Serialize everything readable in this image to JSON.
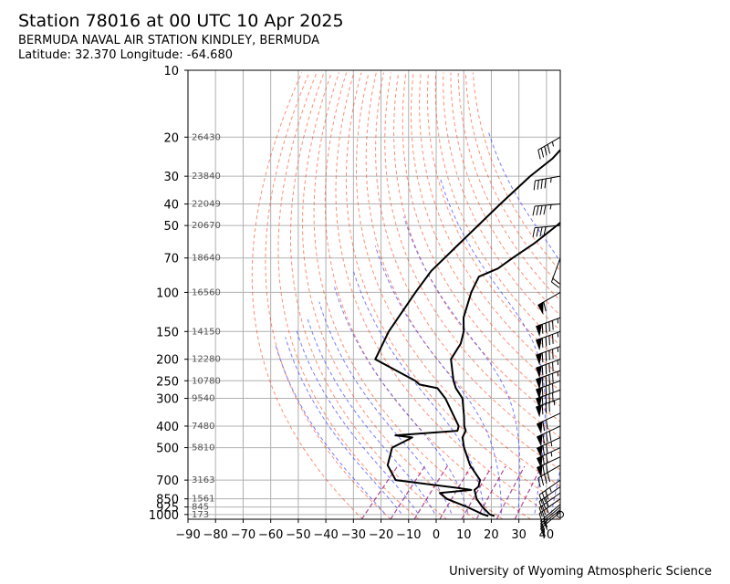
{
  "header": {
    "title": "Station 78016 at 00 UTC 10 Apr 2025",
    "station_name": "BERMUDA NAVAL AIR STATION KINDLEY, BERMUDA",
    "location": "Latitude: 32.370 Longitude: -64.680"
  },
  "footer": {
    "credit": "University of Wyoming Atmospheric Science"
  },
  "chart_data": {
    "type": "skew-t",
    "title": "Station 78016 at 00 UTC 10 Apr 2025",
    "xlabel": "",
    "ylabel": "",
    "x_axis": {
      "ticks": [
        -90,
        -80,
        -70,
        -60,
        -50,
        -40,
        -30,
        -20,
        -10,
        0,
        10,
        20,
        30,
        40
      ],
      "range": [
        -90,
        45
      ]
    },
    "y_axis": {
      "scale": "log",
      "ticks": [
        10,
        20,
        30,
        40,
        50,
        70,
        100,
        150,
        200,
        250,
        300,
        400,
        500,
        700,
        850,
        925,
        1000
      ],
      "range": [
        1050,
        10
      ]
    },
    "grid": true,
    "height_labels": [
      {
        "p": 20,
        "z": "26430"
      },
      {
        "p": 30,
        "z": "23840"
      },
      {
        "p": 40,
        "z": "22049"
      },
      {
        "p": 50,
        "z": "20670"
      },
      {
        "p": 70,
        "z": "18640"
      },
      {
        "p": 100,
        "z": "16560"
      },
      {
        "p": 150,
        "z": "14150"
      },
      {
        "p": 200,
        "z": "12280"
      },
      {
        "p": 250,
        "z": "10780"
      },
      {
        "p": 300,
        "z": "9540"
      },
      {
        "p": 400,
        "z": "7480"
      },
      {
        "p": 500,
        "z": "5810"
      },
      {
        "p": 700,
        "z": "3163"
      },
      {
        "p": 850,
        "z": "1561"
      },
      {
        "p": 925,
        "z": "845"
      },
      {
        "p": 1000,
        "z": "173"
      }
    ],
    "series": [
      {
        "role": "temperature",
        "points": [
          {
            "p": 1016,
            "t": 20.0
          },
          {
            "p": 1000,
            "t": 17.8
          },
          {
            "p": 925,
            "t": 12.4
          },
          {
            "p": 850,
            "t": 7.4
          },
          {
            "p": 775,
            "t": 3.5
          },
          {
            "p": 750,
            "t": 3.8
          },
          {
            "p": 700,
            "t": 2.0
          },
          {
            "p": 600,
            "t": -6.9
          },
          {
            "p": 500,
            "t": -15.3
          },
          {
            "p": 450,
            "t": -19.5
          },
          {
            "p": 420,
            "t": -20.7
          },
          {
            "p": 400,
            "t": -22.9
          },
          {
            "p": 360,
            "t": -26.6
          },
          {
            "p": 300,
            "t": -33.4
          },
          {
            "p": 270,
            "t": -39.4
          },
          {
            "p": 250,
            "t": -42.9
          },
          {
            "p": 200,
            "t": -51.5
          },
          {
            "p": 170,
            "t": -53.5
          },
          {
            "p": 150,
            "t": -56.7
          },
          {
            "p": 130,
            "t": -61.7
          },
          {
            "p": 100,
            "t": -67.9
          },
          {
            "p": 85,
            "t": -70.7
          },
          {
            "p": 78,
            "t": -66.7
          },
          {
            "p": 70,
            "t": -65.1
          },
          {
            "p": 60,
            "t": -62.4
          },
          {
            "p": 50,
            "t": -60.6
          },
          {
            "p": 40,
            "t": -58.8
          },
          {
            "p": 37,
            "t": -60.3
          },
          {
            "p": 30,
            "t": -57.5
          },
          {
            "p": 25,
            "t": -54.7
          },
          {
            "p": 20,
            "t": -54.7
          }
        ]
      },
      {
        "role": "dewpoint",
        "points": [
          {
            "p": 1016,
            "t": 17.8
          },
          {
            "p": 1000,
            "t": 15.4
          },
          {
            "p": 925,
            "t": 6.9
          },
          {
            "p": 850,
            "t": -3.4
          },
          {
            "p": 800,
            "t": -8.0
          },
          {
            "p": 775,
            "t": 2.3
          },
          {
            "p": 760,
            "t": -3.2
          },
          {
            "p": 700,
            "t": -28.6
          },
          {
            "p": 600,
            "t": -36.8
          },
          {
            "p": 500,
            "t": -41.4
          },
          {
            "p": 450,
            "t": -37.7
          },
          {
            "p": 440,
            "t": -44.6
          },
          {
            "p": 420,
            "t": -23.7
          },
          {
            "p": 400,
            "t": -24.9
          },
          {
            "p": 360,
            "t": -30.3
          },
          {
            "p": 300,
            "t": -39.6
          },
          {
            "p": 270,
            "t": -46.1
          },
          {
            "p": 260,
            "t": -53.9
          },
          {
            "p": 250,
            "t": -56.8
          },
          {
            "p": 200,
            "t": -78.9
          },
          {
            "p": 150,
            "t": -83.9
          },
          {
            "p": 100,
            "t": -88.1
          },
          {
            "p": 80,
            "t": -90.0
          },
          {
            "p": 60,
            "t": -89.5
          },
          {
            "p": 40,
            "t": -88.8
          },
          {
            "p": 30,
            "t": -87.8
          },
          {
            "p": 25,
            "t": -86.0
          },
          {
            "p": 20,
            "t": -86.5
          }
        ]
      }
    ],
    "winds": [
      {
        "p": 20,
        "dir": 240,
        "kt": 45
      },
      {
        "p": 30,
        "dir": 260,
        "kt": 45
      },
      {
        "p": 40,
        "dir": 265,
        "kt": 45
      },
      {
        "p": 50,
        "dir": 265,
        "kt": 40
      },
      {
        "p": 70,
        "dir": 200,
        "kt": 20
      },
      {
        "p": 100,
        "dir": 240,
        "kt": 60
      },
      {
        "p": 130,
        "dir": 250,
        "kt": 95
      },
      {
        "p": 150,
        "dir": 250,
        "kt": 95
      },
      {
        "p": 175,
        "dir": 250,
        "kt": 95
      },
      {
        "p": 200,
        "dir": 250,
        "kt": 95
      },
      {
        "p": 225,
        "dir": 250,
        "kt": 95
      },
      {
        "p": 250,
        "dir": 250,
        "kt": 90
      },
      {
        "p": 275,
        "dir": 250,
        "kt": 90
      },
      {
        "p": 300,
        "dir": 250,
        "kt": 85
      },
      {
        "p": 350,
        "dir": 245,
        "kt": 70
      },
      {
        "p": 400,
        "dir": 245,
        "kt": 80
      },
      {
        "p": 450,
        "dir": 245,
        "kt": 75
      },
      {
        "p": 500,
        "dir": 245,
        "kt": 75
      },
      {
        "p": 550,
        "dir": 245,
        "kt": 70
      },
      {
        "p": 600,
        "dir": 240,
        "kt": 40
      },
      {
        "p": 700,
        "dir": 235,
        "kt": 35
      },
      {
        "p": 750,
        "dir": 235,
        "kt": 30
      },
      {
        "p": 800,
        "dir": 235,
        "kt": 25
      },
      {
        "p": 850,
        "dir": 235,
        "kt": 25
      },
      {
        "p": 900,
        "dir": 230,
        "kt": 20
      },
      {
        "p": 925,
        "dir": 230,
        "kt": 20
      },
      {
        "p": 950,
        "dir": 230,
        "kt": 15
      },
      {
        "p": 975,
        "dir": 230,
        "kt": 10
      },
      {
        "p": 1000,
        "dir": 0,
        "kt": 0
      }
    ],
    "line_colors": {
      "temperature": "#000000",
      "dewpoint": "#000000",
      "dry_adiabat": "#ff3300",
      "moist_adiabat": "#3333ff",
      "mixing_ratio": "#9a1a75",
      "grid": "#b0b0b0"
    }
  }
}
